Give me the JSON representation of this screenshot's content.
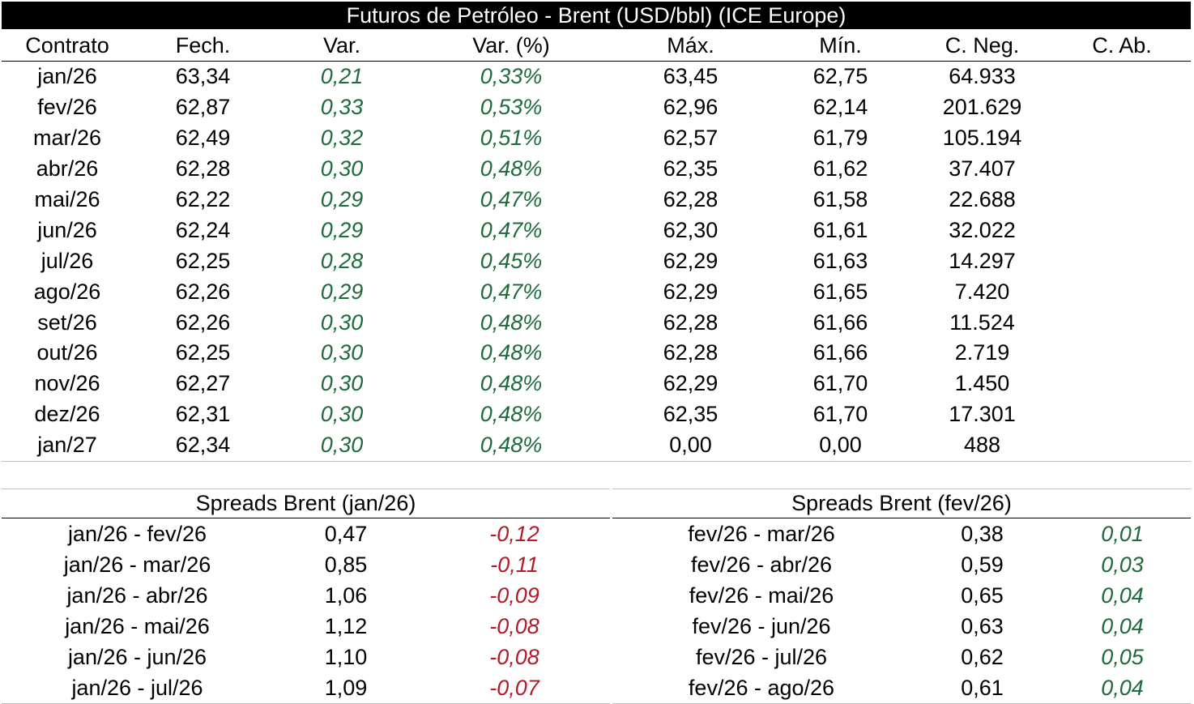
{
  "title": "Futuros de Petróleo - Brent (USD/bbl) (ICE Europe)",
  "columns": [
    "Contrato",
    "Fech.",
    "Var.",
    "Var. (%)",
    "Máx.",
    "Mín.",
    "C. Neg.",
    "C. Ab."
  ],
  "rows": [
    {
      "contract": "jan/26",
      "close": "63,34",
      "change": "0,21",
      "change_pct": "0,33%",
      "high": "63,45",
      "low": "62,75",
      "volume": "64.933",
      "open_interest": ""
    },
    {
      "contract": "fev/26",
      "close": "62,87",
      "change": "0,33",
      "change_pct": "0,53%",
      "high": "62,96",
      "low": "62,14",
      "volume": "201.629",
      "open_interest": ""
    },
    {
      "contract": "mar/26",
      "close": "62,49",
      "change": "0,32",
      "change_pct": "0,51%",
      "high": "62,57",
      "low": "61,79",
      "volume": "105.194",
      "open_interest": ""
    },
    {
      "contract": "abr/26",
      "close": "62,28",
      "change": "0,30",
      "change_pct": "0,48%",
      "high": "62,35",
      "low": "61,62",
      "volume": "37.407",
      "open_interest": ""
    },
    {
      "contract": "mai/26",
      "close": "62,22",
      "change": "0,29",
      "change_pct": "0,47%",
      "high": "62,28",
      "low": "61,58",
      "volume": "22.688",
      "open_interest": ""
    },
    {
      "contract": "jun/26",
      "close": "62,24",
      "change": "0,29",
      "change_pct": "0,47%",
      "high": "62,30",
      "low": "61,61",
      "volume": "32.022",
      "open_interest": ""
    },
    {
      "contract": "jul/26",
      "close": "62,25",
      "change": "0,28",
      "change_pct": "0,45%",
      "high": "62,29",
      "low": "61,63",
      "volume": "14.297",
      "open_interest": ""
    },
    {
      "contract": "ago/26",
      "close": "62,26",
      "change": "0,29",
      "change_pct": "0,47%",
      "high": "62,29",
      "low": "61,65",
      "volume": "7.420",
      "open_interest": ""
    },
    {
      "contract": "set/26",
      "close": "62,26",
      "change": "0,30",
      "change_pct": "0,48%",
      "high": "62,28",
      "low": "61,66",
      "volume": "11.524",
      "open_interest": ""
    },
    {
      "contract": "out/26",
      "close": "62,25",
      "change": "0,30",
      "change_pct": "0,48%",
      "high": "62,28",
      "low": "61,66",
      "volume": "2.719",
      "open_interest": ""
    },
    {
      "contract": "nov/26",
      "close": "62,27",
      "change": "0,30",
      "change_pct": "0,48%",
      "high": "62,29",
      "low": "61,70",
      "volume": "1.450",
      "open_interest": ""
    },
    {
      "contract": "dez/26",
      "close": "62,31",
      "change": "0,30",
      "change_pct": "0,48%",
      "high": "62,35",
      "low": "61,70",
      "volume": "17.301",
      "open_interest": ""
    },
    {
      "contract": "jan/27",
      "close": "62,34",
      "change": "0,30",
      "change_pct": "0,48%",
      "high": "0,00",
      "low": "0,00",
      "volume": "488",
      "open_interest": ""
    }
  ],
  "spreads_left": {
    "title": "Spreads Brent (jan/26)",
    "rows": [
      {
        "pair": "jan/26 - fev/26",
        "value": "0,47",
        "change": "-0,12"
      },
      {
        "pair": "jan/26 - mar/26",
        "value": "0,85",
        "change": "-0,11"
      },
      {
        "pair": "jan/26 - abr/26",
        "value": "1,06",
        "change": "-0,09"
      },
      {
        "pair": "jan/26 - mai/26",
        "value": "1,12",
        "change": "-0,08"
      },
      {
        "pair": "jan/26 - jun/26",
        "value": "1,10",
        "change": "-0,08"
      },
      {
        "pair": "jan/26 - jul/26",
        "value": "1,09",
        "change": "-0,07"
      }
    ]
  },
  "spreads_right": {
    "title": "Spreads Brent (fev/26)",
    "rows": [
      {
        "pair": "fev/26 - mar/26",
        "value": "0,38",
        "change": "0,01"
      },
      {
        "pair": "fev/26 - abr/26",
        "value": "0,59",
        "change": "0,03"
      },
      {
        "pair": "fev/26 - mai/26",
        "value": "0,65",
        "change": "0,04"
      },
      {
        "pair": "fev/26 - jun/26",
        "value": "0,63",
        "change": "0,04"
      },
      {
        "pair": "fev/26 - jul/26",
        "value": "0,62",
        "change": "0,05"
      },
      {
        "pair": "fev/26 - ago/26",
        "value": "0,61",
        "change": "0,04"
      }
    ]
  },
  "colors": {
    "positive": "#1e6b3c",
    "negative": "#b31b28",
    "title_background": "#000000",
    "title_text": "#ffffff"
  }
}
